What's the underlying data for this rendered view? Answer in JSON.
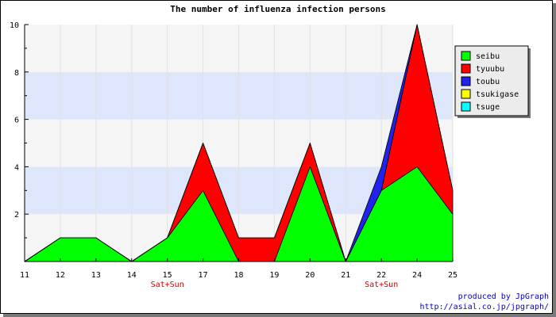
{
  "chart_data": {
    "type": "area",
    "stacked": true,
    "title": "The number of influenza infection persons",
    "x": [
      "11",
      "12",
      "13",
      "14",
      "15",
      "17",
      "18",
      "19",
      "20",
      "21",
      "22",
      "24",
      "25"
    ],
    "x_sublabels": [
      "",
      "",
      "",
      "",
      "Sat+Sun",
      "",
      "",
      "",
      "",
      "",
      "Sat+Sun",
      "",
      ""
    ],
    "ylim": [
      0,
      10
    ],
    "y_ticks": [
      2,
      4,
      6,
      8,
      10
    ],
    "series": [
      {
        "name": "seibu",
        "color": "#00ff00",
        "values": [
          0,
          1,
          1,
          0,
          1,
          3,
          0,
          0,
          4,
          0,
          3,
          4,
          2
        ]
      },
      {
        "name": "tyuubu",
        "color": "#ff0000",
        "values": [
          0,
          0,
          0,
          0,
          0,
          2,
          1,
          1,
          1,
          0,
          0,
          6,
          1
        ]
      },
      {
        "name": "toubu",
        "color": "#2222ee",
        "values": [
          0,
          0,
          0,
          0,
          0,
          0,
          0,
          0,
          0,
          0,
          1,
          0,
          0
        ]
      },
      {
        "name": "tsukigase",
        "color": "#ffff00",
        "values": [
          0,
          0,
          0,
          0,
          0,
          0,
          0,
          0,
          0,
          0,
          0,
          0,
          0
        ]
      },
      {
        "name": "tsuge",
        "color": "#00ffff",
        "values": [
          0,
          0,
          0,
          0,
          0,
          0,
          0,
          0,
          0,
          0,
          0,
          0,
          0
        ]
      }
    ],
    "legend_position": "top-right",
    "band_colors": [
      "#f5f5f5",
      "#dde6fa"
    ]
  },
  "footer": {
    "line1": "produced by JpGraph",
    "line2": "http://asial.co.jp/jpgraph/"
  }
}
